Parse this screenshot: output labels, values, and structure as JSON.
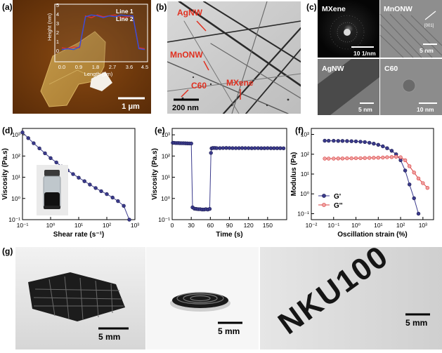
{
  "panels": {
    "a": {
      "label": "(a)",
      "inset_legend": [
        "Line 1",
        "Line 2"
      ],
      "inset_ylabel": "Height (nm)",
      "inset_xlabel": "Length (μm)",
      "inset_yticks": [
        "0",
        "1",
        "2",
        "3",
        "4",
        "5"
      ],
      "inset_xticks": [
        "0.0",
        "0.9",
        "1.8",
        "2.7",
        "3.6",
        "4.5"
      ],
      "scalebar": "1 μm",
      "line1_profile": [
        0.3,
        0.2,
        0.4,
        0.3,
        3.8,
        3.6,
        3.9,
        3.7,
        3.8,
        3.9,
        3.6,
        3.7,
        3.8,
        0.3,
        0.2
      ],
      "line2_profile": [
        0.1,
        0.2,
        0.1,
        0.4,
        3.7,
        3.9,
        3.8,
        3.6,
        3.8,
        3.7,
        3.9,
        3.8,
        3.8,
        0.2,
        0.1
      ]
    },
    "b": {
      "label": "(b)",
      "annotations": [
        "AgNW",
        "MnONW",
        "C60",
        "MXene"
      ],
      "scalebar": "200 nm"
    },
    "c": {
      "label": "(c)",
      "tiles": [
        {
          "title": "MXene",
          "scalebar": "10 1/nm"
        },
        {
          "title": "MnONW",
          "scalebar": "5 nm",
          "extra": "[001]"
        },
        {
          "title": "AgNW",
          "scalebar": "5 nm"
        },
        {
          "title": "C60",
          "scalebar": "10 nm"
        }
      ]
    },
    "d": {
      "label": "(d)"
    },
    "e": {
      "label": "(e)"
    },
    "f": {
      "label": "(f)"
    },
    "g": {
      "label": "(g)",
      "scalebars": [
        "5 mm",
        "5 mm",
        "5 mm"
      ],
      "print_text": "NKU100"
    }
  },
  "chart_data": [
    {
      "id": "d",
      "type": "line",
      "scale": "log-log",
      "xlabel": "Shear rate (s⁻¹)",
      "ylabel": "Viscosity (Pa.s)",
      "xlim": [
        0.1,
        1000
      ],
      "ylim": [
        0.1,
        2000
      ],
      "xticks": [
        "10⁻¹",
        "10⁰",
        "10¹",
        "10²",
        "10³"
      ],
      "yticks": [
        "10⁻¹",
        "10⁰",
        "10¹",
        "10²",
        "10³"
      ],
      "series": [
        {
          "name": "Viscosity",
          "x": [
            0.1,
            0.16,
            0.25,
            0.4,
            0.63,
            1,
            1.6,
            2.5,
            4,
            6.3,
            10,
            16,
            25,
            40,
            63,
            100,
            160,
            250,
            400,
            630
          ],
          "y": [
            1300,
            700,
            400,
            230,
            135,
            80,
            50,
            32,
            21,
            14,
            9.5,
            6.5,
            4.5,
            3.1,
            2.2,
            1.6,
            1.1,
            0.75,
            0.45,
            0.1
          ]
        }
      ]
    },
    {
      "id": "e",
      "type": "line",
      "scale": "semilog-y",
      "xlabel": "Time (s)",
      "ylabel": "Viscosity (Pa.s)",
      "xlim": [
        0,
        180
      ],
      "ylim": [
        0.1,
        2000
      ],
      "xticks": [
        "0",
        "30",
        "60",
        "90",
        "120",
        "150"
      ],
      "yticks": [
        "10⁻¹",
        "10⁰",
        "10¹",
        "10²",
        "10³"
      ],
      "series": [
        {
          "name": "Viscosity",
          "x": [
            1,
            3,
            6,
            9,
            12,
            15,
            18,
            21,
            24,
            27,
            30,
            32,
            35,
            38,
            41,
            44,
            47,
            50,
            53,
            56,
            59,
            61,
            62,
            64,
            67,
            70,
            75,
            80,
            85,
            90,
            95,
            100,
            105,
            110,
            115,
            120,
            125,
            130,
            135,
            140,
            145,
            150,
            155,
            160,
            165,
            170,
            175
          ],
          "y": [
            420,
            415,
            410,
            410,
            405,
            400,
            400,
            398,
            395,
            393,
            390,
            0.38,
            0.33,
            0.32,
            0.31,
            0.31,
            0.3,
            0.3,
            0.31,
            0.3,
            0.32,
            140,
            230,
            240,
            240,
            235,
            235,
            238,
            240,
            238,
            236,
            235,
            236,
            237,
            236,
            235,
            234,
            236,
            235,
            234,
            233,
            235,
            234,
            233,
            234,
            233,
            232
          ]
        }
      ]
    },
    {
      "id": "f",
      "type": "line",
      "scale": "log-log",
      "xlabel": "Oscillation strain (%)",
      "ylabel": "Modulus (Pa)",
      "xlim": [
        0.01,
        3000
      ],
      "ylim": [
        0.05,
        2000
      ],
      "xticks": [
        "10⁻²",
        "10⁻¹",
        "10⁰",
        "10¹",
        "10²",
        "10³"
      ],
      "yticks": [
        "10⁻¹",
        "10⁰",
        "10¹",
        "10²",
        "10³"
      ],
      "legend": [
        "G'",
        "G''"
      ],
      "series": [
        {
          "name": "G'",
          "color": "#3a3a8c",
          "x": [
            0.04,
            0.06,
            0.1,
            0.16,
            0.25,
            0.4,
            0.63,
            1,
            1.6,
            2.5,
            4,
            6.3,
            10,
            16,
            25,
            40,
            63,
            100,
            160,
            250,
            400,
            630
          ],
          "y": [
            480,
            478,
            476,
            470,
            468,
            460,
            455,
            445,
            430,
            410,
            380,
            340,
            300,
            250,
            200,
            150,
            100,
            50,
            15,
            3,
            0.6,
            0.1
          ]
        },
        {
          "name": "G''",
          "color": "#d94040",
          "x": [
            0.04,
            0.06,
            0.1,
            0.16,
            0.25,
            0.4,
            0.63,
            1,
            1.6,
            2.5,
            4,
            6.3,
            10,
            16,
            25,
            40,
            63,
            100,
            160,
            250,
            400,
            630,
            1000,
            1600
          ],
          "y": [
            60,
            60,
            60,
            61,
            61,
            62,
            62,
            63,
            63,
            64,
            65,
            66,
            67,
            68,
            70,
            72,
            75,
            70,
            50,
            25,
            12,
            6,
            3.5,
            2
          ]
        }
      ]
    }
  ]
}
